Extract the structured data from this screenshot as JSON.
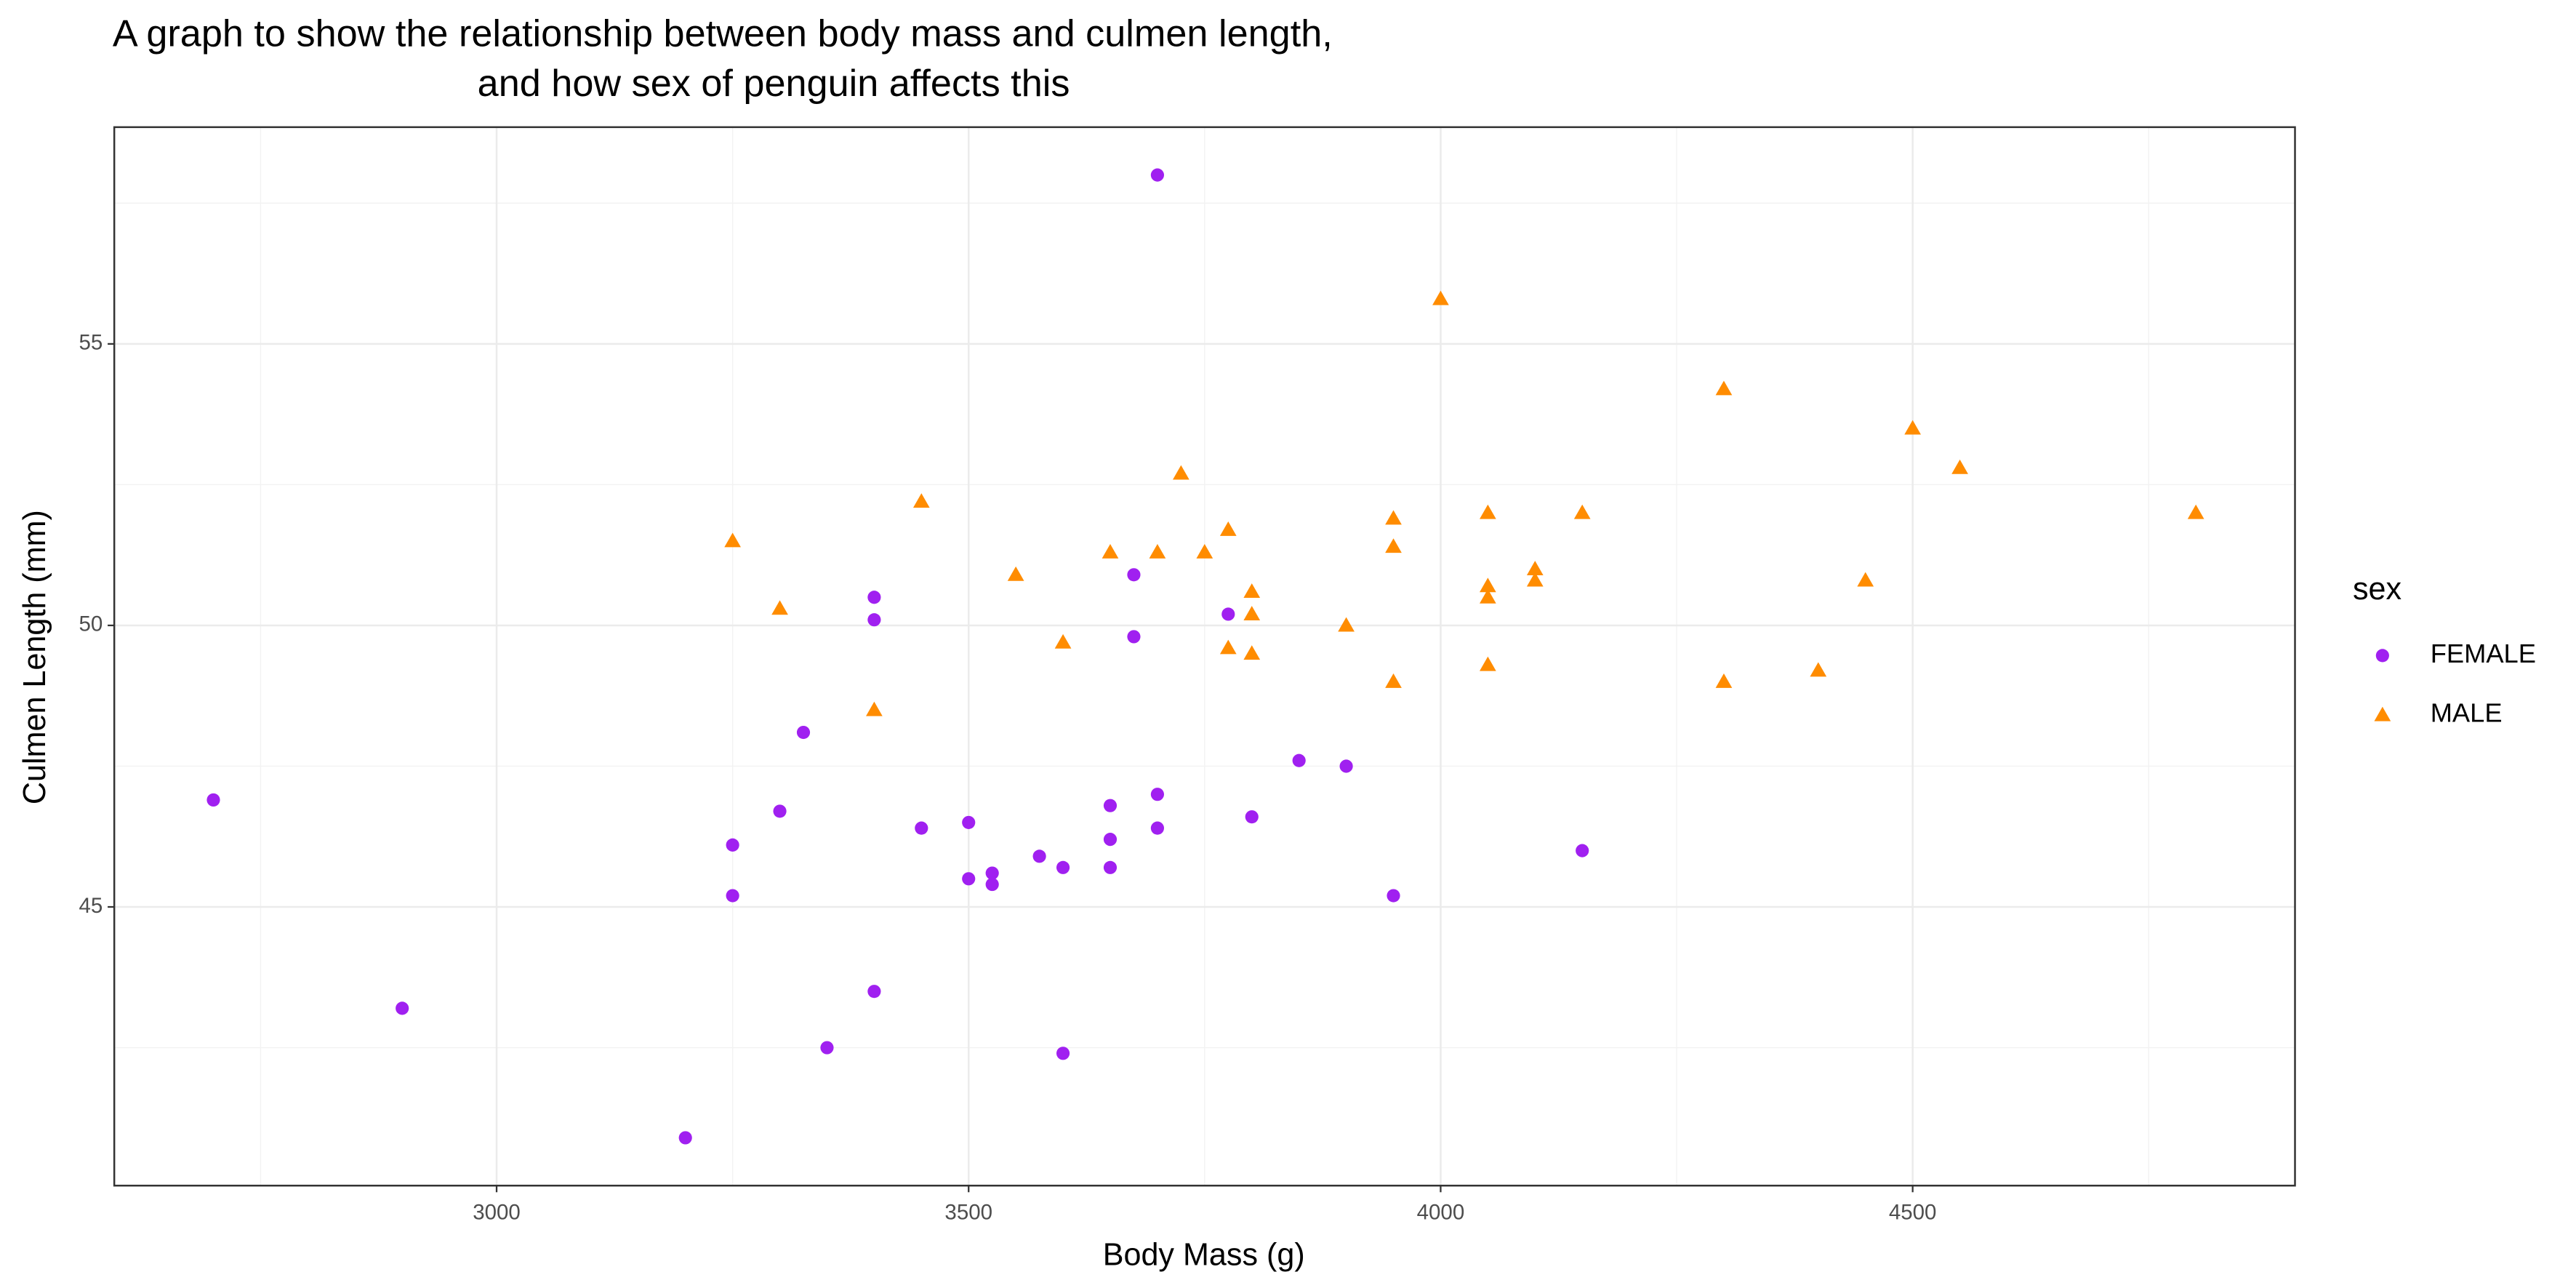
{
  "chart_data": {
    "type": "scatter",
    "title": [
      "A graph to show the relationship between body mass and culmen length,",
      "and how sex of penguin affects this"
    ],
    "x_label": "Body Mass (g)",
    "y_label": "Culmen Length (mm)",
    "legend_title": "sex",
    "legend_position": "right",
    "grid": true,
    "xlim": [
      2595,
      4905
    ],
    "ylim": [
      40.05,
      58.85
    ],
    "xticks": [
      3000,
      3500,
      4000,
      4500
    ],
    "yticks": [
      45,
      50,
      55
    ],
    "x_minor_ticks": [
      2750,
      3250,
      3750,
      4250,
      4750
    ],
    "y_minor_ticks": [
      42.5,
      47.5,
      52.5,
      57.5
    ],
    "series": [
      {
        "name": "FEMALE",
        "color": "#A020F0",
        "marker": "circle",
        "x": [
          2700,
          2900,
          3200,
          3250,
          3250,
          3300,
          3325,
          3350,
          3400,
          3400,
          3400,
          3450,
          3500,
          3500,
          3525,
          3525,
          3575,
          3600,
          3600,
          3650,
          3650,
          3650,
          3675,
          3675,
          3700,
          3700,
          3700,
          3775,
          3800,
          3850,
          3900,
          3950,
          4150
        ],
        "values": [
          46.9,
          43.2,
          40.9,
          46.1,
          45.2,
          46.7,
          48.1,
          42.5,
          50.5,
          50.1,
          43.5,
          46.4,
          46.5,
          45.5,
          45.6,
          45.4,
          45.9,
          45.7,
          42.4,
          46.8,
          46.2,
          45.7,
          50.9,
          49.8,
          58.0,
          47.0,
          46.4,
          50.2,
          46.6,
          47.6,
          47.5,
          45.2,
          46.0
        ]
      },
      {
        "name": "MALE",
        "color": "#FF8C00",
        "marker": "triangle",
        "x": [
          3250,
          3300,
          3400,
          3450,
          3550,
          3600,
          3650,
          3700,
          3725,
          3750,
          3775,
          3775,
          3800,
          3800,
          3800,
          3900,
          3950,
          3950,
          3950,
          4000,
          4050,
          4050,
          4050,
          4050,
          4100,
          4100,
          4150,
          4300,
          4300,
          4400,
          4450,
          4500,
          4550,
          4800
        ],
        "values": [
          51.5,
          50.3,
          48.5,
          52.2,
          50.9,
          49.7,
          51.3,
          51.3,
          52.7,
          51.3,
          51.7,
          49.6,
          50.6,
          50.2,
          49.5,
          50.0,
          51.9,
          51.4,
          49.0,
          55.8,
          52.0,
          50.7,
          50.5,
          49.3,
          51.0,
          50.8,
          52.0,
          54.2,
          49.0,
          49.2,
          50.8,
          53.5,
          52.8,
          52.0
        ]
      }
    ]
  }
}
